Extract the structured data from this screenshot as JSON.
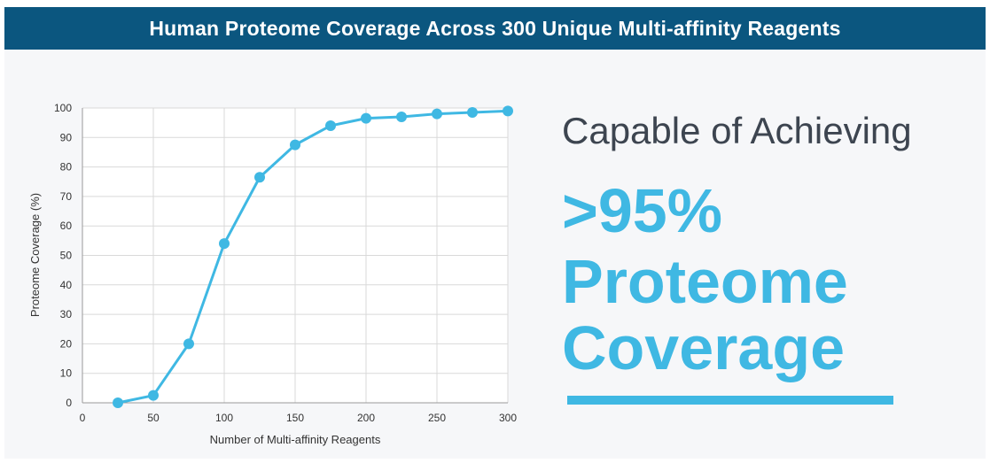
{
  "banner": {
    "title": "Human Proteome Coverage Across 300 Unique Multi-affinity Reagents"
  },
  "callout": {
    "line1": "Capable of Achieving",
    "line2": ">95%",
    "line3": "Proteome",
    "line4": "Coverage"
  },
  "colors": {
    "banner_bg": "#0b567f",
    "accent": "#3fb8e3",
    "text_dark": "#3d4550"
  },
  "chart_data": {
    "type": "line",
    "title": "",
    "xlabel": "Number of Multi-affinity Reagents",
    "ylabel": "Proteome Coverage (%)",
    "xlim": [
      0,
      300
    ],
    "ylim": [
      0,
      100
    ],
    "x_ticks": [
      0,
      50,
      100,
      150,
      200,
      250,
      300
    ],
    "y_ticks": [
      0,
      10,
      20,
      30,
      40,
      50,
      60,
      70,
      80,
      90,
      100
    ],
    "grid": true,
    "series": [
      {
        "x": [
          25,
          50,
          75,
          100,
          125,
          150,
          175,
          200,
          225,
          250,
          275,
          300
        ],
        "y": [
          0,
          2.5,
          20,
          54,
          76.5,
          87.5,
          94,
          96.5,
          97,
          98,
          98.5,
          99
        ]
      }
    ]
  }
}
